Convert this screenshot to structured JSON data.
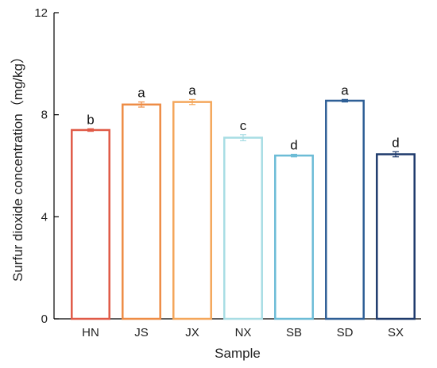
{
  "chart_data": {
    "type": "bar",
    "categories": [
      "HN",
      "JS",
      "JX",
      "NX",
      "SB",
      "SD",
      "SX"
    ],
    "values": [
      7.4,
      8.4,
      8.5,
      7.1,
      6.4,
      8.55,
      6.45
    ],
    "errors": [
      0.05,
      0.1,
      0.1,
      0.12,
      0.05,
      0.05,
      0.1
    ],
    "significance": [
      "b",
      "a",
      "a",
      "c",
      "d",
      "a",
      "d"
    ],
    "colors": [
      "#e05a47",
      "#ee8c45",
      "#f4a65a",
      "#a8dde4",
      "#6cbcd6",
      "#2e5f96",
      "#1e3a6c"
    ],
    "xlabel": "Sample",
    "ylabel": "Surfur dioxide concentration（mg/kg）",
    "ylim": [
      0,
      12
    ],
    "yticks": [
      0,
      4,
      8,
      12
    ],
    "grid": false
  }
}
